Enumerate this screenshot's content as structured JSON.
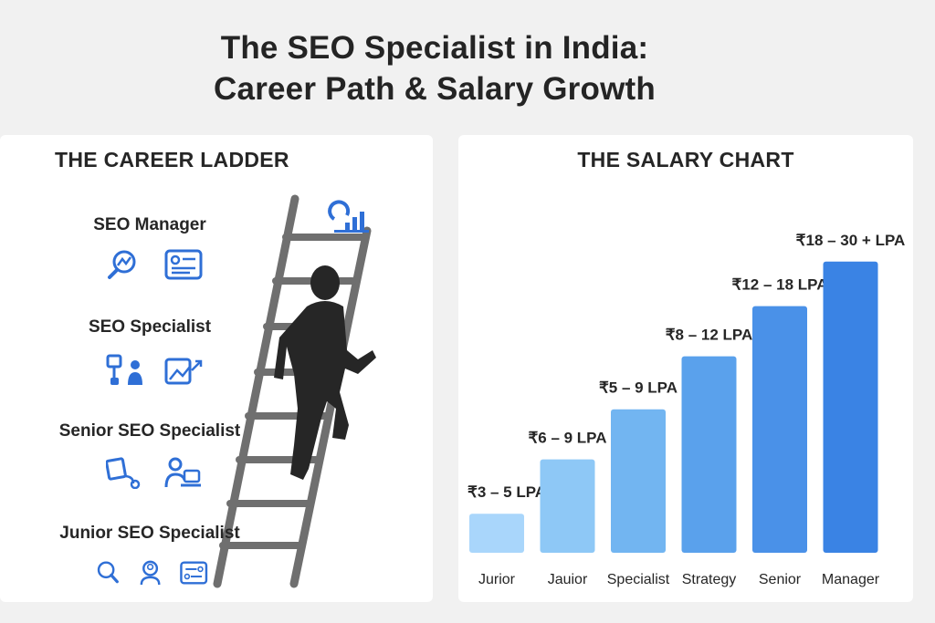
{
  "title": {
    "line1": "The SEO Specialist in India:",
    "line2": "Career Path & Salary Growth"
  },
  "ladder": {
    "heading": "THE CAREER LADDER",
    "levels": [
      {
        "label": "SEO Manager",
        "icons": [
          "search-analytics-icon",
          "profile-card-icon"
        ]
      },
      {
        "label": "SEO Specialist",
        "icons": [
          "team-hierarchy-icon",
          "growth-image-icon"
        ]
      },
      {
        "label": "Senior SEO Specialist",
        "icons": [
          "document-link-icon",
          "user-laptop-icon"
        ]
      },
      {
        "label": "Junior SEO Specialist",
        "icons": [
          "search-icon",
          "user-search-icon",
          "settings-panel-icon"
        ]
      }
    ],
    "accent_color": "#2f6fd6"
  },
  "chart_data": {
    "type": "bar",
    "title": "THE SALARY CHART",
    "categories": [
      "Jurior",
      "Jauior",
      "Specialist",
      "Strategy",
      "Senior",
      "Manager"
    ],
    "values": [
      28,
      67,
      103,
      141,
      177,
      209
    ],
    "data_labels": [
      "₹3 – 5 LPA",
      "₹6 – 9 LPA",
      "₹5 – 9 LPA",
      "₹8 – 12 LPA",
      "₹12 – 18 LPA",
      "₹18 – 30 + LPA"
    ],
    "colors": [
      "#a9d6fb",
      "#8ec8f6",
      "#72b5f1",
      "#5aa1ec",
      "#4a91e8",
      "#3a83e4"
    ],
    "ylim": [
      0,
      220
    ],
    "grid": false,
    "legend": "none"
  }
}
